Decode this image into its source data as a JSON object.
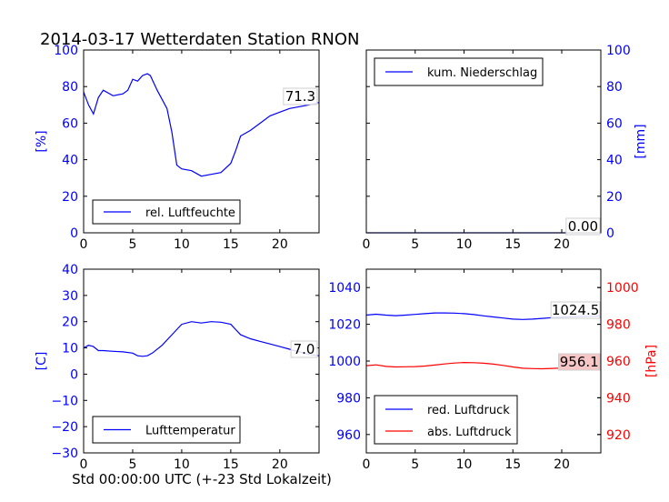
{
  "title": "2014-03-17 Wetterdaten Station RNON",
  "xlabel": "Std 00:00:00 UTC (+-23 Std Lokalzeit)",
  "colors": {
    "blue": "#0000ff",
    "red": "#ff0000",
    "badge_red": "#f7c7c7"
  },
  "chart_data": [
    {
      "id": "humidity",
      "type": "line",
      "ylabel": "[%]",
      "xlim": [
        0,
        24
      ],
      "ylim": [
        0,
        100
      ],
      "xticks": [
        0,
        5,
        10,
        15,
        20
      ],
      "yticks": [
        0,
        20,
        40,
        60,
        80,
        100
      ],
      "legend": {
        "position": "bottom-left",
        "entries": [
          "rel. Luftfeuchte"
        ]
      },
      "current_label": "71.3",
      "series": [
        {
          "name": "rel. Luftfeuchte",
          "color": "#0000ff",
          "x": [
            0,
            0.5,
            1.0,
            1.5,
            2.0,
            3.0,
            4.0,
            4.5,
            5.0,
            5.5,
            6.0,
            6.5,
            6.8,
            7.5,
            8.5,
            9.0,
            9.5,
            10.0,
            11.0,
            12.0,
            13.0,
            14.0,
            15.0,
            15.5,
            16.0,
            17.0,
            18.0,
            19.0,
            20.0,
            21.0,
            22.0,
            23.0,
            24.0
          ],
          "values": [
            77,
            70,
            65,
            74,
            78,
            75,
            76,
            78,
            84,
            83,
            86,
            87,
            86,
            78,
            68,
            55,
            37,
            35,
            34,
            31,
            32,
            33,
            38,
            45,
            53,
            56,
            60,
            64,
            66,
            68,
            69,
            70,
            71.3
          ]
        }
      ]
    },
    {
      "id": "precipitation",
      "type": "line",
      "ylabel": "[mm]",
      "xlim": [
        0,
        24
      ],
      "ylim": [
        0,
        100
      ],
      "xticks": [
        0,
        5,
        10,
        15,
        20
      ],
      "yticks": [
        0,
        20,
        40,
        60,
        80,
        100
      ],
      "legend": {
        "position": "top-left",
        "entries": [
          "kum. Niederschlag"
        ]
      },
      "current_label": "0.00",
      "series": [
        {
          "name": "kum. Niederschlag",
          "color": "#0000ff",
          "x": [
            0,
            24
          ],
          "values": [
            0,
            0
          ]
        }
      ]
    },
    {
      "id": "temperature",
      "type": "line",
      "ylabel": "[C]",
      "xlim": [
        0,
        24
      ],
      "ylim": [
        -30,
        40
      ],
      "xticks": [
        0,
        5,
        10,
        15,
        20
      ],
      "yticks": [
        -30,
        -20,
        -10,
        0,
        10,
        20,
        30,
        40
      ],
      "legend": {
        "position": "bottom-left",
        "entries": [
          "Lufttemperatur"
        ]
      },
      "current_label": "7.0",
      "series": [
        {
          "name": "Lufttemperatur",
          "color": "#0000ff",
          "x": [
            0,
            0.5,
            1.0,
            1.5,
            2.0,
            3.0,
            4.0,
            5.0,
            5.5,
            6.0,
            6.5,
            7.0,
            8.0,
            9.0,
            10.0,
            11.0,
            12.0,
            13.0,
            14.0,
            15.0,
            15.5,
            16.0,
            17.0,
            18.0,
            19.0,
            20.0,
            21.0,
            22.0,
            23.0,
            24.0
          ],
          "values": [
            10,
            11,
            10.5,
            9,
            9,
            8.7,
            8.5,
            8,
            7,
            6.8,
            7,
            8,
            11,
            15,
            19,
            20,
            19.5,
            20,
            19.8,
            19,
            17,
            15,
            13.5,
            12.5,
            11.5,
            10.5,
            9.5,
            8.5,
            7.5,
            7.0
          ]
        }
      ]
    },
    {
      "id": "pressure",
      "type": "line",
      "xlim": [
        0,
        24
      ],
      "ylim": [
        950,
        1050
      ],
      "y2label": "[hPa]",
      "y2lim": [
        910,
        1010
      ],
      "xticks": [
        0,
        5,
        10,
        15,
        20
      ],
      "yticks": [
        960,
        980,
        1000,
        1020,
        1040
      ],
      "y2ticks": [
        920,
        940,
        960,
        980,
        1000
      ],
      "legend": {
        "position": "bottom-left",
        "entries": [
          "red. Luftdruck",
          "abs. Luftdruck"
        ]
      },
      "current_label_red": "1024.5",
      "current_label_abs": "956.1",
      "series": [
        {
          "name": "red. Luftdruck",
          "color": "#0000ff",
          "axis": "left",
          "x": [
            0,
            1,
            2,
            3,
            4,
            5,
            6,
            7,
            8,
            9,
            10,
            11,
            12,
            13,
            14,
            15,
            16,
            17,
            18,
            19,
            20,
            21,
            22,
            23,
            24
          ],
          "values": [
            1025,
            1025.5,
            1025,
            1024.7,
            1025,
            1025.4,
            1025.8,
            1026.2,
            1026.2,
            1026.1,
            1025.8,
            1025.3,
            1024.6,
            1024,
            1023.4,
            1022.8,
            1022.6,
            1022.8,
            1023.2,
            1023.6,
            1023.9,
            1024.1,
            1024.3,
            1024.4,
            1024.5
          ]
        },
        {
          "name": "abs. Luftdruck",
          "color": "#ff0000",
          "axis": "right",
          "x": [
            0,
            1,
            2,
            3,
            4,
            5,
            6,
            7,
            8,
            9,
            10,
            11,
            12,
            13,
            14,
            15,
            16,
            17,
            18,
            19,
            20,
            21,
            22,
            23,
            24
          ],
          "values": [
            957.5,
            957.9,
            957.1,
            956.8,
            956.9,
            957,
            957.3,
            957.8,
            958.4,
            958.9,
            959.2,
            959.1,
            958.8,
            958.3,
            957.6,
            956.8,
            956.1,
            955.9,
            955.8,
            956,
            956.2,
            956.3,
            956.3,
            956.2,
            956.1
          ]
        }
      ]
    }
  ]
}
